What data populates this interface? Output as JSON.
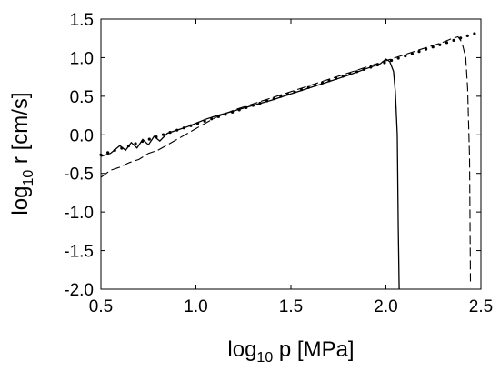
{
  "chart_data": {
    "type": "line",
    "title": "",
    "xlabel": {
      "prefix": "log",
      "sub": "10",
      "suffix": " p [MPa]"
    },
    "ylabel": {
      "prefix": "log",
      "sub": "10",
      "suffix": " r [cm/s]"
    },
    "xlim": [
      0.5,
      2.5
    ],
    "ylim": [
      -2.0,
      1.5
    ],
    "x_ticks": [
      "0.5",
      "1.0",
      "1.5",
      "2.0",
      "2.5"
    ],
    "y_ticks": [
      "-2.0",
      "-1.5",
      "-1.0",
      "-0.5",
      "0.0",
      "0.5",
      "1.0",
      "1.5"
    ],
    "grid": false,
    "legend": "none",
    "series": [
      {
        "style": "dotted",
        "x": [
          0.5,
          0.6,
          0.7,
          0.8,
          0.9,
          1.0,
          1.1,
          1.2,
          1.3,
          1.4,
          1.5,
          1.6,
          1.7,
          1.8,
          1.9,
          2.0,
          2.1,
          2.2,
          2.3,
          2.4,
          2.5
        ],
        "y": [
          -0.26,
          -0.18,
          -0.1,
          -0.02,
          0.06,
          0.14,
          0.22,
          0.3,
          0.38,
          0.46,
          0.54,
          0.62,
          0.7,
          0.78,
          0.86,
          0.94,
          1.02,
          1.1,
          1.18,
          1.26,
          1.34
        ]
      },
      {
        "style": "solid",
        "x": [
          0.5,
          0.55,
          0.6,
          0.63,
          0.66,
          0.69,
          0.72,
          0.75,
          0.78,
          0.81,
          0.85,
          0.9,
          0.95,
          1.0,
          1.05,
          1.1,
          1.2,
          1.3,
          1.4,
          1.5,
          1.6,
          1.7,
          1.8,
          1.9,
          1.97,
          2.0,
          2.02,
          2.04,
          2.05,
          2.06,
          2.065,
          2.07
        ],
        "y": [
          -0.28,
          -0.24,
          -0.14,
          -0.2,
          -0.1,
          -0.17,
          -0.06,
          -0.13,
          -0.02,
          -0.08,
          0.02,
          0.06,
          0.1,
          0.15,
          0.2,
          0.24,
          0.31,
          0.38,
          0.45,
          0.53,
          0.61,
          0.69,
          0.77,
          0.86,
          0.92,
          0.98,
          0.95,
          0.82,
          0.55,
          0.0,
          -1.2,
          -2.0
        ]
      },
      {
        "style": "dashed",
        "x": [
          0.5,
          0.55,
          0.6,
          0.65,
          0.7,
          0.75,
          0.8,
          0.9,
          1.0,
          1.1,
          1.2,
          1.3,
          1.4,
          1.5,
          1.6,
          1.7,
          1.8,
          1.9,
          2.0,
          2.1,
          2.2,
          2.3,
          2.35,
          2.38,
          2.4,
          2.42,
          2.43,
          2.44,
          2.445
        ],
        "y": [
          -0.55,
          -0.46,
          -0.42,
          -0.36,
          -0.32,
          -0.24,
          -0.2,
          -0.06,
          0.08,
          0.22,
          0.32,
          0.4,
          0.48,
          0.56,
          0.64,
          0.72,
          0.8,
          0.88,
          0.96,
          1.04,
          1.12,
          1.2,
          1.25,
          1.27,
          1.2,
          1.0,
          0.6,
          -0.3,
          -1.9
        ]
      }
    ]
  }
}
